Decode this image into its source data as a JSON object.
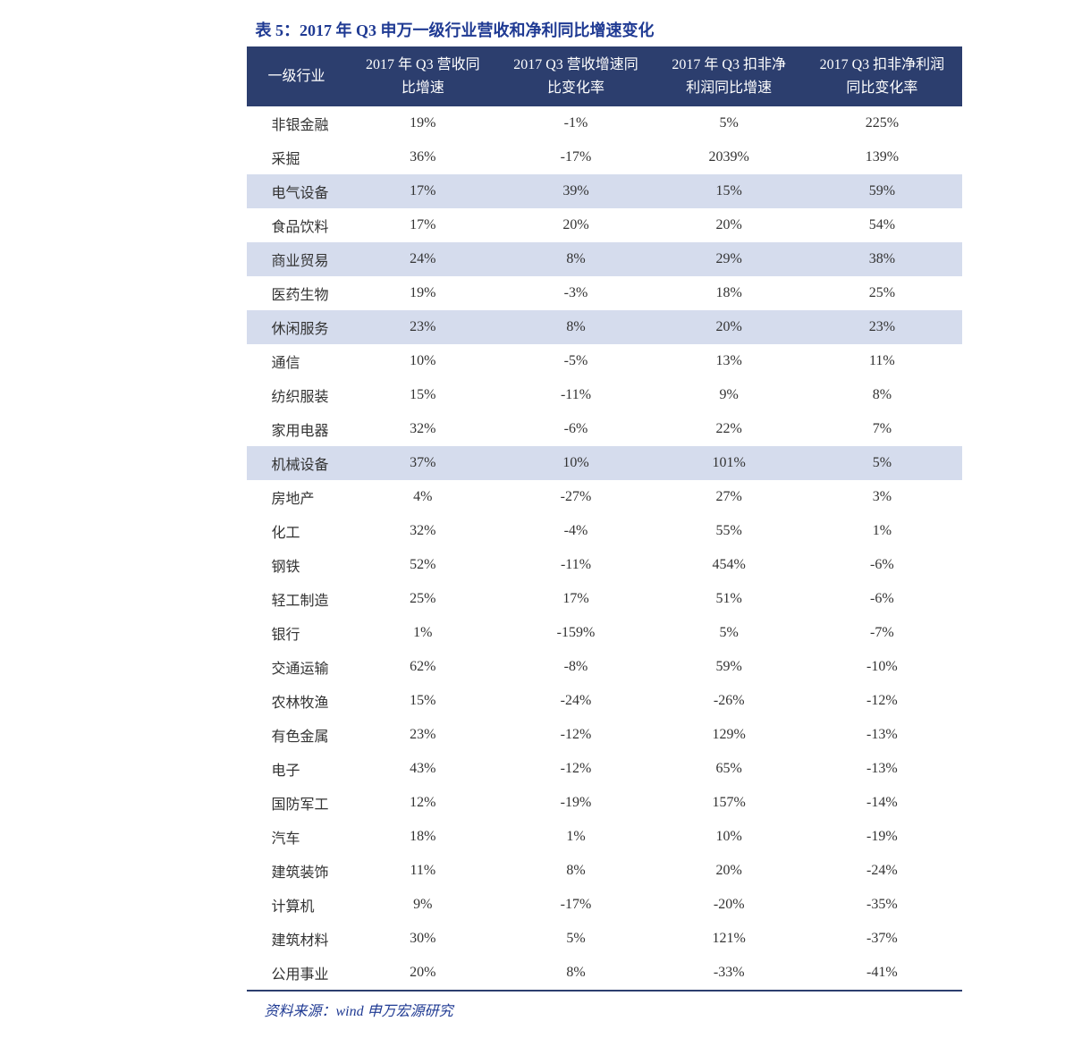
{
  "title": "表 5：2017 年 Q3 申万一级行业营收和净利同比增速变化",
  "source": "资料来源：wind  申万宏源研究",
  "table": {
    "title_color": "#1f3a93",
    "header_bg": "#2c3e6e",
    "header_text_color": "#ffffff",
    "highlight_bg": "#d5dced",
    "body_text_color": "#333333",
    "border_bottom_color": "#2c3e6e",
    "font_size": 16,
    "columns": [
      {
        "line1": "一级行业",
        "line2": ""
      },
      {
        "line1": "2017 年 Q3 营收同",
        "line2": "比增速"
      },
      {
        "line1": "2017 Q3 营收增速同",
        "line2": "比变化率"
      },
      {
        "line1": "2017 年 Q3 扣非净",
        "line2": "利润同比增速"
      },
      {
        "line1": "2017 Q3 扣非净利润",
        "line2": "同比变化率"
      }
    ],
    "rows": [
      {
        "industry": "非银金融",
        "c1": "19%",
        "c2": "-1%",
        "c3": "5%",
        "c4": "225%",
        "highlight": false
      },
      {
        "industry": "采掘",
        "c1": "36%",
        "c2": "-17%",
        "c3": "2039%",
        "c4": "139%",
        "highlight": false
      },
      {
        "industry": "电气设备",
        "c1": "17%",
        "c2": "39%",
        "c3": "15%",
        "c4": "59%",
        "highlight": true
      },
      {
        "industry": "食品饮料",
        "c1": "17%",
        "c2": "20%",
        "c3": "20%",
        "c4": "54%",
        "highlight": false
      },
      {
        "industry": "商业贸易",
        "c1": "24%",
        "c2": "8%",
        "c3": "29%",
        "c4": "38%",
        "highlight": true
      },
      {
        "industry": "医药生物",
        "c1": "19%",
        "c2": "-3%",
        "c3": "18%",
        "c4": "25%",
        "highlight": false
      },
      {
        "industry": "休闲服务",
        "c1": "23%",
        "c2": "8%",
        "c3": "20%",
        "c4": "23%",
        "highlight": true
      },
      {
        "industry": "通信",
        "c1": "10%",
        "c2": "-5%",
        "c3": "13%",
        "c4": "11%",
        "highlight": false
      },
      {
        "industry": "纺织服装",
        "c1": "15%",
        "c2": "-11%",
        "c3": "9%",
        "c4": "8%",
        "highlight": false
      },
      {
        "industry": "家用电器",
        "c1": "32%",
        "c2": "-6%",
        "c3": "22%",
        "c4": "7%",
        "highlight": false
      },
      {
        "industry": "机械设备",
        "c1": "37%",
        "c2": "10%",
        "c3": "101%",
        "c4": "5%",
        "highlight": true
      },
      {
        "industry": "房地产",
        "c1": "4%",
        "c2": "-27%",
        "c3": "27%",
        "c4": "3%",
        "highlight": false
      },
      {
        "industry": "化工",
        "c1": "32%",
        "c2": "-4%",
        "c3": "55%",
        "c4": "1%",
        "highlight": false
      },
      {
        "industry": "钢铁",
        "c1": "52%",
        "c2": "-11%",
        "c3": "454%",
        "c4": "-6%",
        "highlight": false
      },
      {
        "industry": "轻工制造",
        "c1": "25%",
        "c2": "17%",
        "c3": "51%",
        "c4": "-6%",
        "highlight": false
      },
      {
        "industry": "银行",
        "c1": "1%",
        "c2": "-159%",
        "c3": "5%",
        "c4": "-7%",
        "highlight": false
      },
      {
        "industry": "交通运输",
        "c1": "62%",
        "c2": "-8%",
        "c3": "59%",
        "c4": "-10%",
        "highlight": false
      },
      {
        "industry": "农林牧渔",
        "c1": "15%",
        "c2": "-24%",
        "c3": "-26%",
        "c4": "-12%",
        "highlight": false
      },
      {
        "industry": "有色金属",
        "c1": "23%",
        "c2": "-12%",
        "c3": "129%",
        "c4": "-13%",
        "highlight": false
      },
      {
        "industry": "电子",
        "c1": "43%",
        "c2": "-12%",
        "c3": "65%",
        "c4": "-13%",
        "highlight": false
      },
      {
        "industry": "国防军工",
        "c1": "12%",
        "c2": "-19%",
        "c3": "157%",
        "c4": "-14%",
        "highlight": false
      },
      {
        "industry": "汽车",
        "c1": "18%",
        "c2": "1%",
        "c3": "10%",
        "c4": "-19%",
        "highlight": false
      },
      {
        "industry": "建筑装饰",
        "c1": "11%",
        "c2": "8%",
        "c3": "20%",
        "c4": "-24%",
        "highlight": false
      },
      {
        "industry": "计算机",
        "c1": "9%",
        "c2": "-17%",
        "c3": "-20%",
        "c4": "-35%",
        "highlight": false
      },
      {
        "industry": "建筑材料",
        "c1": "30%",
        "c2": "5%",
        "c3": "121%",
        "c4": "-37%",
        "highlight": false
      },
      {
        "industry": "公用事业",
        "c1": "20%",
        "c2": "8%",
        "c3": "-33%",
        "c4": "-41%",
        "highlight": false
      }
    ]
  }
}
